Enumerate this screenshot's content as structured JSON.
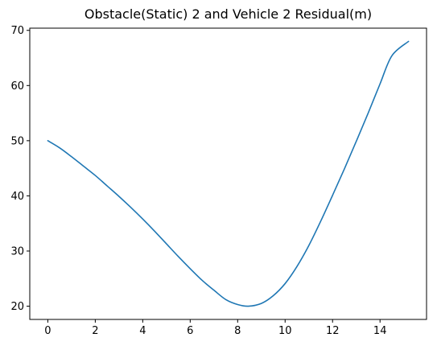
{
  "chart_data": {
    "type": "line",
    "title": "Obstacle(Static) 2 and Vehicle 2 Residual(m)",
    "xlabel": "",
    "ylabel": "",
    "xlim": [
      -0.76,
      15.96
    ],
    "ylim": [
      17.6,
      70.4
    ],
    "xticks": [
      0,
      2,
      4,
      6,
      8,
      10,
      12,
      14
    ],
    "yticks": [
      20,
      30,
      40,
      50,
      60,
      70
    ],
    "grid": false,
    "series": [
      {
        "color": "#1f77b4",
        "x": [
          0,
          0.5,
          1,
          1.5,
          2,
          2.5,
          3,
          3.5,
          4,
          4.5,
          5,
          5.5,
          6,
          6.5,
          7,
          7.5,
          8,
          8.45,
          9,
          9.5,
          10,
          10.5,
          11,
          11.5,
          12,
          12.5,
          13,
          13.5,
          14,
          14.5,
          15.2
        ],
        "y": [
          50.0,
          48.7,
          47.1,
          45.4,
          43.7,
          41.8,
          39.9,
          37.9,
          35.8,
          33.6,
          31.3,
          29.0,
          26.8,
          24.7,
          22.9,
          21.2,
          20.3,
          20.0,
          20.5,
          21.9,
          24.1,
          27.2,
          31.0,
          35.4,
          40.1,
          44.9,
          49.9,
          55.0,
          60.3,
          65.4,
          68.0
        ]
      }
    ]
  }
}
